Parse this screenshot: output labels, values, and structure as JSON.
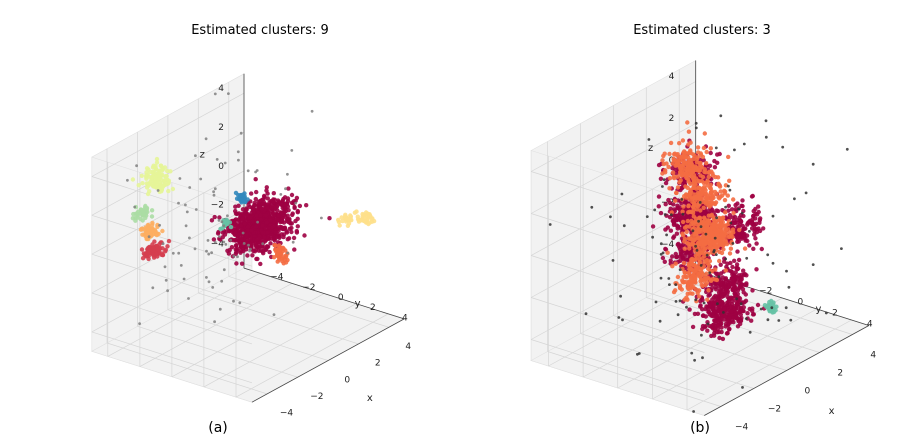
{
  "chart_data": [
    {
      "type": "scatter3d",
      "title": "Estimated clusters: 9",
      "caption": "(a)",
      "xlabel": "x",
      "ylabel": "y",
      "zlabel": "z",
      "xlim": [
        -5,
        5
      ],
      "ylim": [
        -5,
        5
      ],
      "zlim": [
        -5,
        5
      ],
      "x_ticks": [
        "−4",
        "−2",
        "0",
        "2",
        "4"
      ],
      "y_ticks": [
        "−4",
        "−2",
        "0",
        "2",
        "4"
      ],
      "z_ticks": [
        "−4",
        "−2",
        "0",
        "2",
        "4"
      ],
      "grid": true,
      "series": [
        {
          "color": "#9e0142",
          "kind": "blob",
          "points": [
            [
              0.5,
              1.2,
              1.4
            ],
            [
              1.0,
              0.8,
              1.0
            ],
            [
              0.2,
              1.8,
              1.8
            ],
            [
              1.2,
              1.5,
              1.2
            ],
            [
              0.0,
              1.0,
              0.8
            ]
          ],
          "count": 900,
          "spread": 0.55
        },
        {
          "color": "#d53e4f",
          "kind": "blob",
          "points": [
            [
              2.9,
              -3.4,
              -0.4
            ],
            [
              2.8,
              -3.0,
              -0.2
            ]
          ],
          "count": 90,
          "spread": 0.18
        },
        {
          "color": "#f46d43",
          "kind": "blob",
          "points": [
            [
              -0.6,
              1.6,
              -0.8
            ],
            [
              -0.8,
              1.2,
              -0.6
            ]
          ],
          "count": 40,
          "spread": 0.15
        },
        {
          "color": "#fdae61",
          "kind": "blob",
          "points": [
            [
              2.6,
              -3.6,
              0.5
            ]
          ],
          "count": 60,
          "spread": 0.2
        },
        {
          "color": "#fee08b",
          "kind": "blob",
          "points": [
            [
              -3.6,
              2.8,
              0.2
            ],
            [
              -4.4,
              3.2,
              0.0
            ]
          ],
          "count": 60,
          "spread": 0.2
        },
        {
          "color": "#e6f598",
          "kind": "blob",
          "points": [
            [
              3.0,
              -3.0,
              3.8
            ],
            [
              3.2,
              -2.6,
              3.5
            ]
          ],
          "count": 110,
          "spread": 0.3
        },
        {
          "color": "#abdda4",
          "kind": "blob",
          "points": [
            [
              3.0,
              -3.8,
              1.6
            ]
          ],
          "count": 40,
          "spread": 0.2
        },
        {
          "color": "#66c2a5",
          "kind": "blob",
          "points": [
            [
              1.0,
              -0.5,
              1.0
            ]
          ],
          "count": 20,
          "spread": 0.12
        },
        {
          "color": "#3288bd",
          "kind": "blob",
          "points": [
            [
              0.8,
              0.4,
              2.5
            ]
          ],
          "count": 25,
          "spread": 0.12
        },
        {
          "color": "#808080",
          "kind": "noise",
          "count": 90,
          "spread": 2.4,
          "center": [
            1.2,
            -1.2,
            1.2
          ]
        }
      ]
    },
    {
      "type": "scatter3d",
      "title": "Estimated clusters: 3",
      "caption": "(b)",
      "xlabel": "x",
      "ylabel": "y",
      "zlabel": "z",
      "xlim": [
        -5,
        5
      ],
      "ylim": [
        -5,
        5
      ],
      "zlim": [
        -5,
        5
      ],
      "x_ticks": [
        "−4",
        "−2",
        "0",
        "2",
        "4"
      ],
      "y_ticks": [
        "−4",
        "−2",
        "0",
        "2",
        "4"
      ],
      "z_ticks": [
        "−4",
        "−2",
        "0",
        "2",
        "4"
      ],
      "grid": true,
      "series": [
        {
          "color": "#9e0142",
          "kind": "blob",
          "points": [
            [
              1.0,
              0.5,
              3.8
            ],
            [
              1.5,
              0.8,
              2.0
            ],
            [
              2.0,
              1.5,
              0.5
            ],
            [
              1.2,
              2.5,
              -1.0
            ],
            [
              0.5,
              2.0,
              -2.8
            ],
            [
              0.0,
              1.2,
              -3.2
            ],
            [
              2.5,
              2.0,
              2.5
            ],
            [
              0.5,
              2.8,
              1.5
            ]
          ],
          "count": 1200,
          "spread": 0.5
        },
        {
          "color": "#f46d43",
          "kind": "blob",
          "points": [
            [
              -0.5,
              -1.2,
              3.0
            ],
            [
              -0.8,
              -0.6,
              1.5
            ],
            [
              -0.2,
              0.0,
              0.0
            ],
            [
              0.5,
              0.2,
              -1.5
            ],
            [
              0.2,
              1.0,
              0.5
            ]
          ],
          "count": 800,
          "spread": 0.45
        },
        {
          "color": "#66c2a5",
          "kind": "blob",
          "points": [
            [
              -2.0,
              2.2,
              -3.6
            ]
          ],
          "count": 25,
          "spread": 0.15
        },
        {
          "color": "#333333",
          "kind": "noise",
          "count": 130,
          "spread": 2.8,
          "center": [
            0.5,
            1.5,
            -0.5
          ]
        }
      ]
    }
  ]
}
